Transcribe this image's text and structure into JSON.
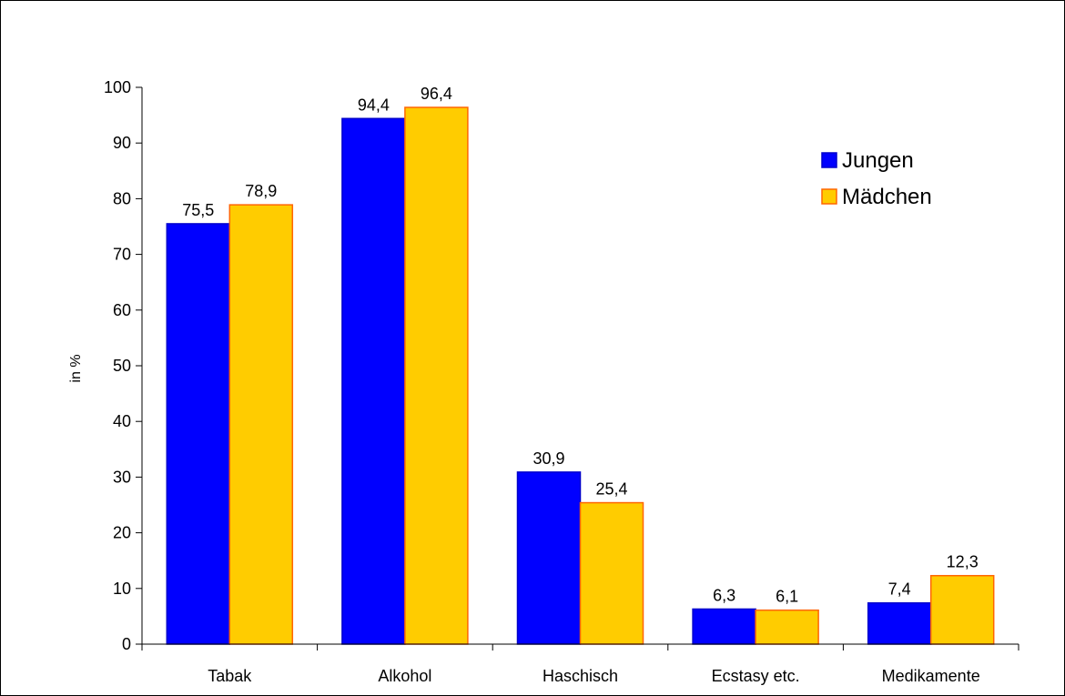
{
  "chart_data": {
    "type": "bar",
    "categories": [
      "Tabak",
      "Alkohol",
      "Haschisch",
      "Ecstasy etc.",
      "Medikamente"
    ],
    "series": [
      {
        "name": "Jungen",
        "values": [
          75.5,
          94.4,
          30.9,
          6.3,
          7.4
        ],
        "labels": [
          "75,5",
          "94,4",
          "30,9",
          "6,3",
          "7,4"
        ],
        "fill": "#0000FF",
        "stroke": "#0000CC"
      },
      {
        "name": "Mädchen",
        "values": [
          78.9,
          96.4,
          25.4,
          6.1,
          12.3
        ],
        "labels": [
          "78,9",
          "96,4",
          "25,4",
          "6,1",
          "12,3"
        ],
        "fill": "#FFCC00",
        "stroke": "#FF6600"
      }
    ],
    "title": "",
    "xlabel": "",
    "ylabel": "in %",
    "ylim": [
      0,
      100
    ],
    "yticks": [
      0,
      10,
      20,
      30,
      40,
      50,
      60,
      70,
      80,
      90,
      100
    ],
    "grid": false,
    "legend_position": "top-right"
  }
}
